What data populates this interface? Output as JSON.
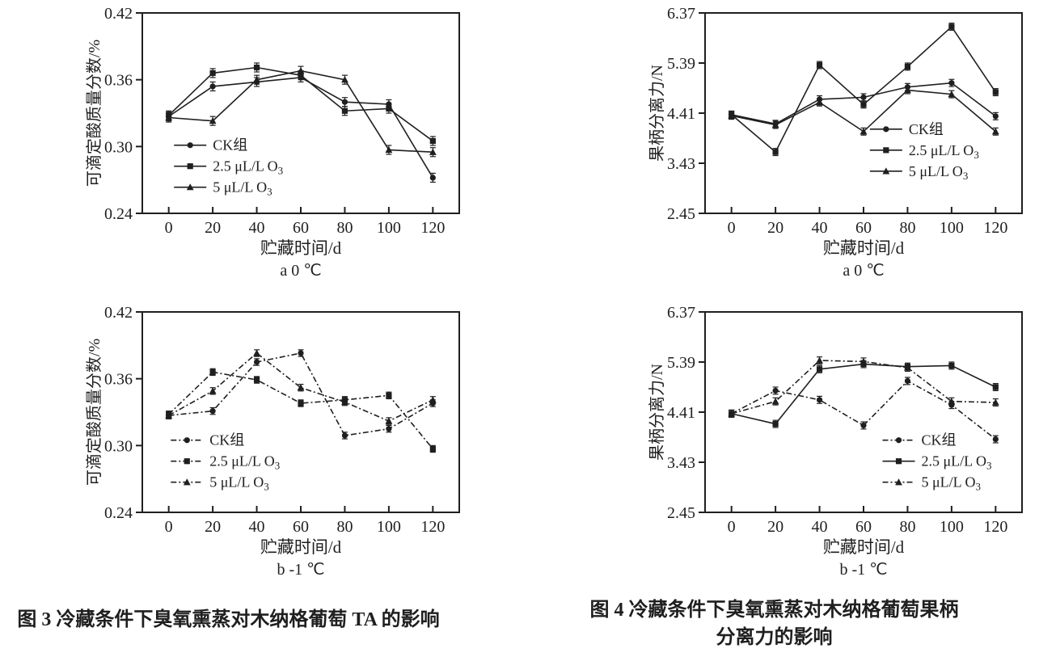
{
  "page": {
    "background": "#ffffff"
  },
  "colors": {
    "ink": "#1f1f1f"
  },
  "figure3": {
    "caption": "图 3  冷藏条件下臭氧熏蒸对木纳格葡萄 TA 的影响"
  },
  "figure4": {
    "caption_line1": "图 4  冷藏条件下臭氧熏蒸对木纳格葡萄果柄",
    "caption_line2": "分离力的影响"
  },
  "chart_data": [
    {
      "id": "fig3a",
      "type": "line",
      "title": "a 0 ℃",
      "xlabel": "贮藏时间/d",
      "ylabel": "可滴定酸质量分数/%",
      "ylim": [
        0.24,
        0.42
      ],
      "yticks": [
        0.24,
        0.3,
        0.36,
        0.42
      ],
      "y_decimals": 2,
      "xticks": [
        0,
        20,
        40,
        60,
        80,
        100,
        120
      ],
      "x": [
        0,
        20,
        40,
        60,
        80,
        100,
        120
      ],
      "error_bar": 0.004,
      "grid": false,
      "legend_pos": {
        "x_frac": 0.1,
        "y_frac": 0.66
      },
      "series": [
        {
          "name": "CK组",
          "marker": "circle",
          "dashed": false,
          "values": [
            0.327,
            0.354,
            0.358,
            0.362,
            0.34,
            0.338,
            0.272
          ]
        },
        {
          "name": "2.5 μL/L O3",
          "marker": "square",
          "dashed": false,
          "values": [
            0.328,
            0.366,
            0.371,
            0.364,
            0.332,
            0.334,
            0.305
          ]
        },
        {
          "name": "5 μL/L O3",
          "marker": "triangle",
          "dashed": false,
          "values": [
            0.326,
            0.323,
            0.36,
            0.368,
            0.36,
            0.297,
            0.295
          ]
        }
      ]
    },
    {
      "id": "fig3b",
      "type": "line",
      "title": "b -1 ℃",
      "xlabel": "贮藏时间/d",
      "ylabel": "可滴定酸质量分数/%",
      "ylim": [
        0.24,
        0.42
      ],
      "yticks": [
        0.24,
        0.3,
        0.36,
        0.42
      ],
      "y_decimals": 2,
      "xticks": [
        0,
        20,
        40,
        60,
        80,
        100,
        120
      ],
      "x": [
        0,
        20,
        40,
        60,
        80,
        100,
        120
      ],
      "error_bar": 0.003,
      "grid": false,
      "legend_pos": {
        "x_frac": 0.09,
        "y_frac": 0.64
      },
      "series": [
        {
          "name": "CK组",
          "marker": "circle",
          "dashed": true,
          "values": [
            0.327,
            0.331,
            0.375,
            0.383,
            0.309,
            0.315,
            0.338
          ]
        },
        {
          "name": "2.5 μL/L O3",
          "marker": "square",
          "dashed": true,
          "values": [
            0.328,
            0.366,
            0.359,
            0.338,
            0.341,
            0.345,
            0.297
          ]
        },
        {
          "name": "5 μL/L O3",
          "marker": "triangle",
          "dashed": true,
          "values": [
            0.327,
            0.349,
            0.383,
            0.352,
            0.339,
            0.322,
            0.341
          ]
        }
      ]
    },
    {
      "id": "fig4a",
      "type": "line",
      "title": "a 0 ℃",
      "xlabel": "贮藏时间/d",
      "ylabel": "果柄分离力/N",
      "ylim": [
        2.45,
        6.37
      ],
      "yticks": [
        2.45,
        3.43,
        4.41,
        5.39,
        6.37
      ],
      "y_decimals": 2,
      "xticks": [
        0,
        20,
        40,
        60,
        80,
        100,
        120
      ],
      "x": [
        0,
        20,
        40,
        60,
        80,
        100,
        120
      ],
      "error_bar": 0.07,
      "grid": false,
      "legend_pos": {
        "x_frac": 0.52,
        "y_frac": 0.58
      },
      "series": [
        {
          "name": "CK组",
          "marker": "circle",
          "dashed": false,
          "values": [
            4.38,
            4.2,
            4.68,
            4.72,
            4.92,
            5.0,
            4.35
          ]
        },
        {
          "name": "2.5 μL/L O3",
          "marker": "square",
          "dashed": false,
          "values": [
            4.38,
            3.65,
            5.35,
            4.58,
            5.32,
            6.1,
            4.82
          ]
        },
        {
          "name": "5 μL/L O3",
          "marker": "triangle",
          "dashed": false,
          "values": [
            4.36,
            4.18,
            4.62,
            4.05,
            4.86,
            4.78,
            4.05
          ]
        }
      ]
    },
    {
      "id": "fig4b",
      "type": "line",
      "title": "b -1 ℃",
      "xlabel": "贮藏时间/d",
      "ylabel": "果柄分离力/N",
      "ylim": [
        2.45,
        6.37
      ],
      "yticks": [
        2.45,
        3.43,
        4.41,
        5.39,
        6.37
      ],
      "y_decimals": 2,
      "xticks": [
        0,
        20,
        40,
        60,
        80,
        100,
        120
      ],
      "x": [
        0,
        20,
        40,
        60,
        80,
        100,
        120
      ],
      "error_bar": 0.07,
      "grid": false,
      "legend_pos": {
        "x_frac": 0.56,
        "y_frac": 0.64
      },
      "series": [
        {
          "name": "CK组",
          "marker": "circle",
          "dashed": true,
          "values": [
            4.38,
            4.83,
            4.65,
            4.15,
            5.02,
            4.55,
            3.88
          ]
        },
        {
          "name": "2.5 μL/L O3",
          "marker": "square",
          "dashed": false,
          "values": [
            4.38,
            4.18,
            5.25,
            5.35,
            5.3,
            5.32,
            4.9
          ]
        },
        {
          "name": "5 μL/L O3",
          "marker": "triangle",
          "dashed": true,
          "values": [
            4.38,
            4.62,
            5.42,
            5.4,
            5.28,
            4.62,
            4.6
          ]
        }
      ]
    }
  ]
}
